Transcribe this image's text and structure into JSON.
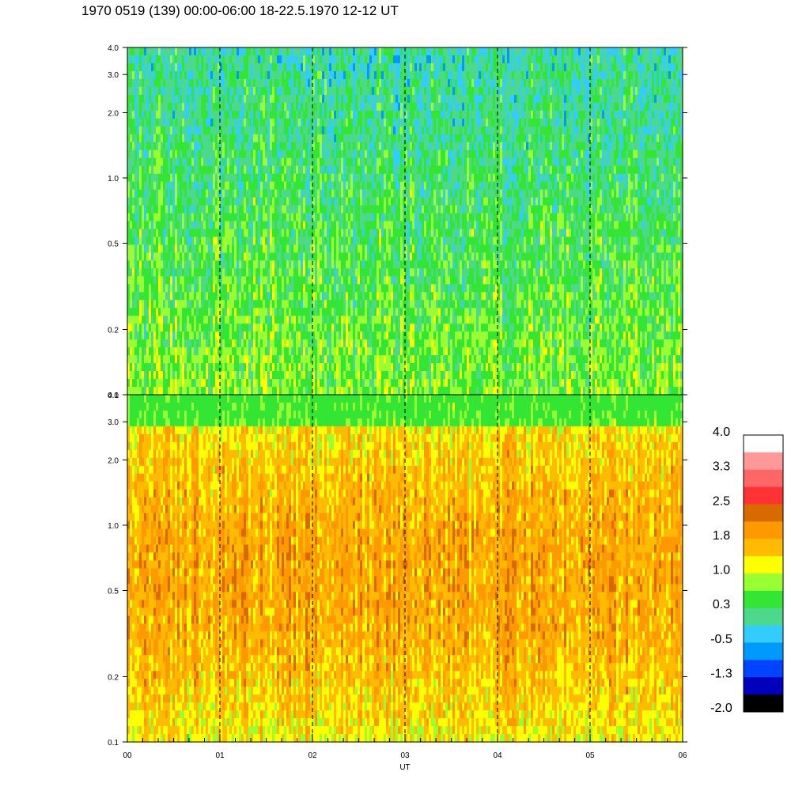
{
  "title": "1970 0519 (139) 00:00-06:00 18-22.5.1970  12-12 UT",
  "chart_data": {
    "type": "heatmap",
    "title": "1970 0519 (139) 00:00-06:00 18-22.5.1970  12-12 UT",
    "xlabel": "UT",
    "ylabel": "",
    "x_range": [
      0,
      6
    ],
    "x_ticks": [
      "00",
      "01",
      "02",
      "03",
      "04",
      "05",
      "06"
    ],
    "x_minor_step": 0.1667,
    "y_scale": "log",
    "y_range": [
      0.1,
      4.0
    ],
    "y_ticks": [
      {
        "value": 0.1,
        "label": "0.1"
      },
      {
        "value": 0.2,
        "label": "0.2"
      },
      {
        "value": 0.5,
        "label": "0.5"
      },
      {
        "value": 1.0,
        "label": "1.0"
      },
      {
        "value": 2.0,
        "label": "2.0"
      },
      {
        "value": 3.0,
        "label": "3.0"
      },
      {
        "value": 4.0,
        "label": "4.0"
      }
    ],
    "hour_dashed_lines": [
      1,
      2,
      3,
      4,
      5
    ],
    "panels": [
      {
        "name": "upper",
        "typical_level": 0.5,
        "range": [
          -0.6,
          1.6
        ]
      },
      {
        "name": "lower",
        "typical_level": 1.6,
        "range": [
          0.3,
          2.6
        ]
      }
    ],
    "colorbar": {
      "range": [
        -2.0,
        4.0
      ],
      "labels": [
        "4.0",
        "3.3",
        "2.5",
        "1.8",
        "1.0",
        "0.3",
        "-0.5",
        "-1.3",
        "-2.0"
      ],
      "colors": [
        "#ffffff",
        "#ff9999",
        "#ff6666",
        "#ff3333",
        "#d96a00",
        "#ff9900",
        "#ffbb00",
        "#ffff00",
        "#99ff33",
        "#33e633",
        "#4dd98c",
        "#33ccff",
        "#0099ff",
        "#0044ff",
        "#0000bb",
        "#000000"
      ]
    }
  }
}
